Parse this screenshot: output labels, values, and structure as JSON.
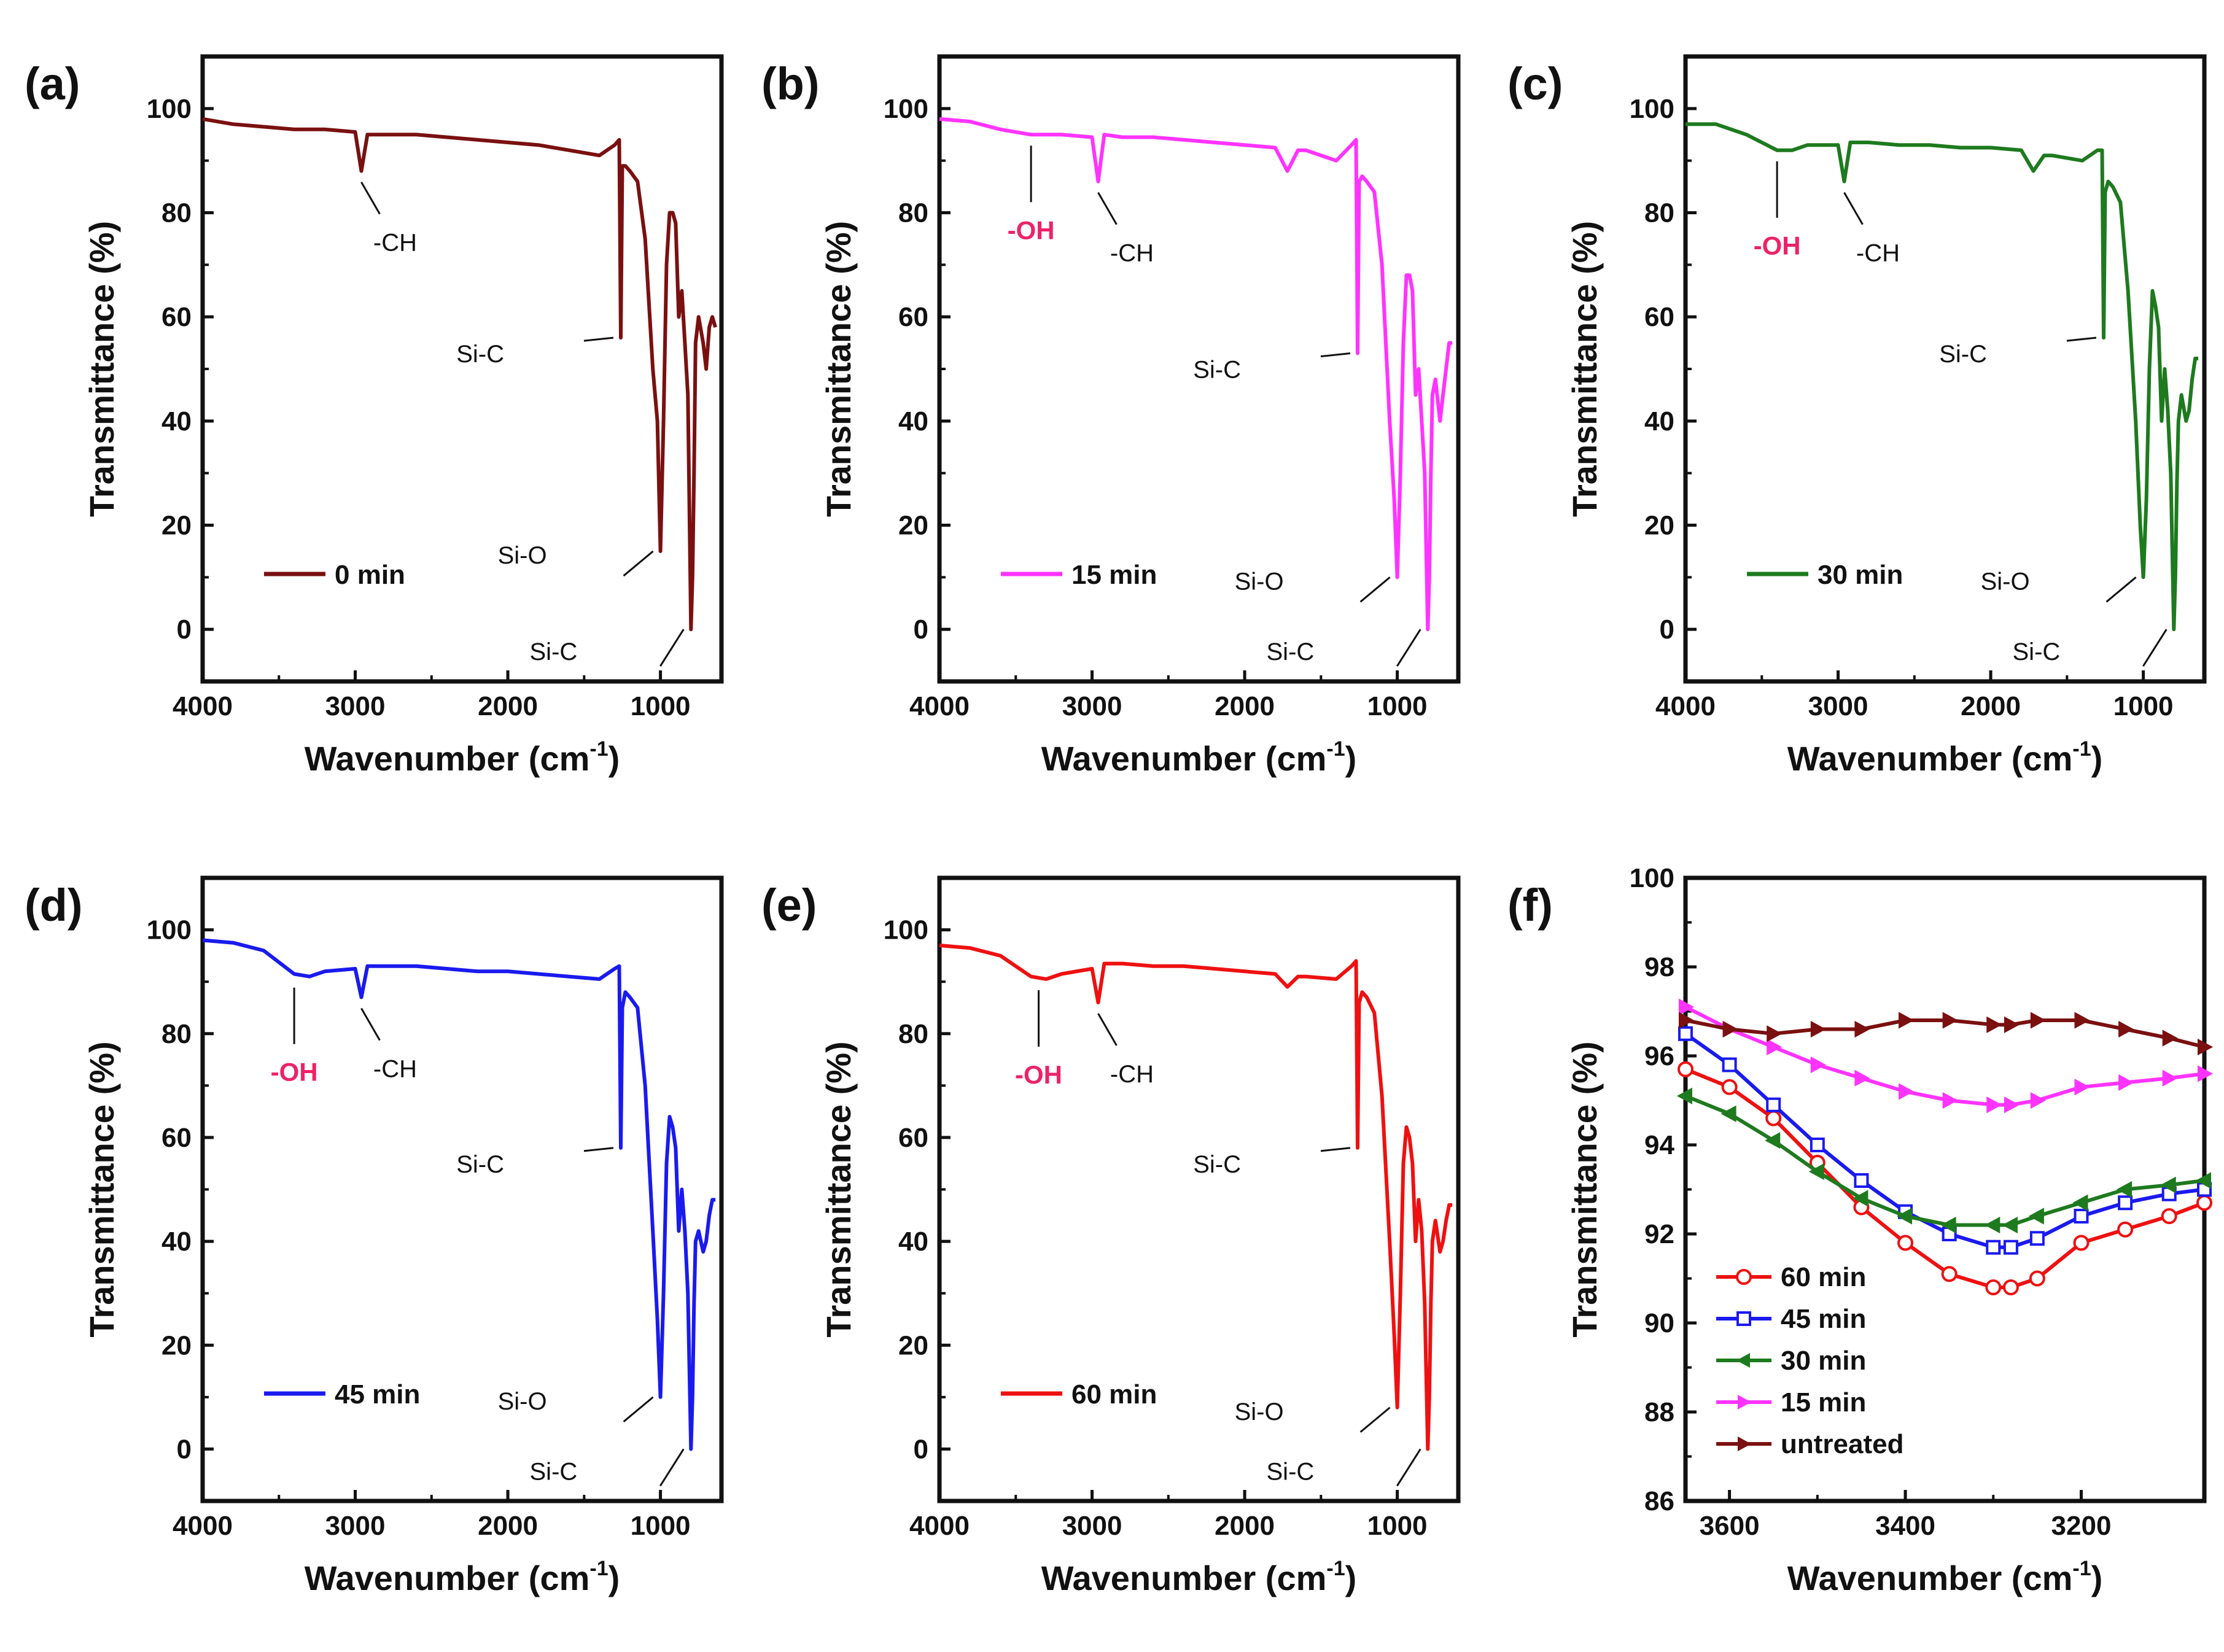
{
  "chart_data": [
    {
      "type": "line",
      "panel": "(a)",
      "title": "",
      "xlabel": "Wavenumber (cm",
      "xlabel_sup": "-1",
      "xlabel_end": ")",
      "ylabel": "Transmittance (%)",
      "xlim": [
        4000,
        600
      ],
      "ylim": [
        -10,
        110
      ],
      "xticks": [
        4000,
        3000,
        2000,
        1000
      ],
      "yticks": [
        0,
        20,
        40,
        60,
        80,
        100
      ],
      "color": "#7a1010",
      "legend": "0 min",
      "series": [
        {
          "name": "0 min",
          "x": [
            4000,
            3800,
            3600,
            3400,
            3200,
            3000,
            2960,
            2920,
            2800,
            2600,
            2400,
            2200,
            2000,
            1800,
            1600,
            1400,
            1300,
            1270,
            1260,
            1250,
            1230,
            1200,
            1150,
            1100,
            1050,
            1020,
            1000,
            980,
            960,
            940,
            920,
            900,
            880,
            860,
            840,
            820,
            800,
            790,
            780,
            770,
            750,
            720,
            700,
            680,
            660,
            640
          ],
          "y": [
            98,
            97,
            96.5,
            96,
            96,
            95.5,
            88,
            95,
            95,
            95,
            94.5,
            94,
            93.5,
            93,
            92,
            91,
            93,
            94,
            56,
            89,
            89,
            88,
            86,
            75,
            50,
            40,
            15,
            40,
            70,
            80,
            80,
            78,
            60,
            65,
            55,
            45,
            0,
            10,
            30,
            55,
            60,
            55,
            50,
            58,
            60,
            58
          ]
        }
      ],
      "annotations": [
        {
          "text": "-CH",
          "x": 2960,
          "y": 88
        },
        {
          "text": "Si-C",
          "x": 1260,
          "y": 56
        },
        {
          "text": "Si-O",
          "x": 1000,
          "y": 15
        },
        {
          "text": "Si-C",
          "x": 800,
          "y": 0
        }
      ]
    },
    {
      "type": "line",
      "panel": "(b)",
      "title": "",
      "xlabel": "Wavenumber (cm",
      "xlabel_sup": "-1",
      "xlabel_end": ")",
      "ylabel": "Transmittance (%)",
      "xlim": [
        4000,
        600
      ],
      "ylim": [
        -10,
        110
      ],
      "xticks": [
        4000,
        3000,
        2000,
        1000
      ],
      "yticks": [
        0,
        20,
        40,
        60,
        80,
        100
      ],
      "color": "#ff33ff",
      "legend": "15 min",
      "series": [
        {
          "name": "15 min",
          "x": [
            4000,
            3800,
            3600,
            3400,
            3300,
            3200,
            3000,
            2960,
            2920,
            2800,
            2600,
            2400,
            2200,
            2000,
            1800,
            1720,
            1650,
            1600,
            1400,
            1300,
            1270,
            1260,
            1250,
            1230,
            1200,
            1150,
            1100,
            1050,
            1020,
            1000,
            980,
            960,
            940,
            920,
            900,
            880,
            860,
            840,
            820,
            800,
            790,
            780,
            770,
            750,
            720,
            700,
            680,
            660,
            640
          ],
          "y": [
            98,
            97.5,
            96,
            95,
            95,
            95,
            94.5,
            86,
            95,
            94.5,
            94.5,
            94,
            93.5,
            93,
            92.5,
            88,
            92,
            92,
            90,
            93,
            94,
            53,
            86,
            87,
            86,
            84,
            70,
            40,
            25,
            10,
            30,
            55,
            68,
            68,
            65,
            45,
            50,
            40,
            30,
            0,
            10,
            30,
            45,
            48,
            40,
            45,
            50,
            55,
            55
          ]
        }
      ],
      "annotations": [
        {
          "text": "-OH",
          "x": 3400,
          "y": 95,
          "highlight": true
        },
        {
          "text": "-CH",
          "x": 2960,
          "y": 86
        },
        {
          "text": "Si-C",
          "x": 1260,
          "y": 53
        },
        {
          "text": "Si-O",
          "x": 1000,
          "y": 10
        },
        {
          "text": "Si-C",
          "x": 800,
          "y": 0
        }
      ]
    },
    {
      "type": "line",
      "panel": "(c)",
      "title": "",
      "xlabel": "Wavenumber (cm",
      "xlabel_sup": "-1",
      "xlabel_end": ")",
      "ylabel": "Transmittance (%)",
      "xlim": [
        4000,
        600
      ],
      "ylim": [
        -10,
        110
      ],
      "xticks": [
        4000,
        3000,
        2000,
        1000
      ],
      "yticks": [
        0,
        20,
        40,
        60,
        80,
        100
      ],
      "color": "#1e7a1e",
      "legend": "30 min",
      "series": [
        {
          "name": "30 min",
          "x": [
            4000,
            3800,
            3600,
            3400,
            3300,
            3200,
            3000,
            2960,
            2920,
            2800,
            2600,
            2400,
            2200,
            2000,
            1800,
            1720,
            1650,
            1600,
            1400,
            1300,
            1270,
            1260,
            1250,
            1230,
            1200,
            1150,
            1100,
            1050,
            1020,
            1000,
            980,
            960,
            940,
            920,
            900,
            880,
            860,
            840,
            820,
            800,
            790,
            780,
            770,
            750,
            720,
            700,
            680,
            660,
            640
          ],
          "y": [
            97,
            97,
            95,
            92,
            92,
            93,
            93,
            86,
            93.5,
            93.5,
            93,
            93,
            92.5,
            92.5,
            92,
            88,
            91,
            91,
            90,
            92,
            92,
            56,
            84,
            86,
            85,
            82,
            65,
            40,
            20,
            10,
            25,
            50,
            65,
            62,
            58,
            40,
            50,
            42,
            30,
            0,
            10,
            28,
            40,
            45,
            40,
            42,
            48,
            52,
            52
          ]
        }
      ],
      "annotations": [
        {
          "text": "-OH",
          "x": 3400,
          "y": 92,
          "highlight": true
        },
        {
          "text": "-CH",
          "x": 2960,
          "y": 86
        },
        {
          "text": "Si-C",
          "x": 1260,
          "y": 56
        },
        {
          "text": "Si-O",
          "x": 1000,
          "y": 10
        },
        {
          "text": "Si-C",
          "x": 800,
          "y": 0
        }
      ]
    },
    {
      "type": "line",
      "panel": "(d)",
      "title": "",
      "xlabel": "Wavenumber (cm",
      "xlabel_sup": "-1",
      "xlabel_end": ")",
      "ylabel": "Transmittance (%)",
      "xlim": [
        4000,
        600
      ],
      "ylim": [
        -10,
        110
      ],
      "xticks": [
        4000,
        3000,
        2000,
        1000
      ],
      "yticks": [
        0,
        20,
        40,
        60,
        80,
        100
      ],
      "color": "#1a1aee",
      "legend": "45 min",
      "series": [
        {
          "name": "45 min",
          "x": [
            4000,
            3800,
            3600,
            3400,
            3300,
            3200,
            3000,
            2960,
            2920,
            2800,
            2600,
            2400,
            2200,
            2000,
            1800,
            1600,
            1400,
            1300,
            1270,
            1260,
            1250,
            1230,
            1200,
            1150,
            1100,
            1050,
            1020,
            1000,
            980,
            960,
            940,
            920,
            900,
            880,
            860,
            840,
            820,
            800,
            790,
            780,
            770,
            750,
            720,
            700,
            680,
            660,
            640
          ],
          "y": [
            98,
            97.5,
            96,
            91.5,
            91,
            92,
            92.5,
            87,
            93,
            93,
            93,
            92.5,
            92,
            92,
            91.5,
            91,
            90.5,
            92.5,
            93,
            58,
            85,
            88,
            87,
            85,
            70,
            42,
            25,
            10,
            30,
            55,
            64,
            62,
            58,
            42,
            50,
            42,
            30,
            0,
            10,
            28,
            40,
            42,
            38,
            40,
            45,
            48,
            48
          ]
        }
      ],
      "annotations": [
        {
          "text": "-OH",
          "x": 3400,
          "y": 91,
          "highlight": true
        },
        {
          "text": "-CH",
          "x": 2960,
          "y": 87
        },
        {
          "text": "Si-C",
          "x": 1260,
          "y": 58
        },
        {
          "text": "Si-O",
          "x": 1000,
          "y": 10
        },
        {
          "text": "Si-C",
          "x": 800,
          "y": 0
        }
      ]
    },
    {
      "type": "line",
      "panel": "(e)",
      "title": "",
      "xlabel": "Wavenumber (cm",
      "xlabel_sup": "-1",
      "xlabel_end": ")",
      "ylabel": "Transmittance (%)",
      "xlim": [
        4000,
        600
      ],
      "ylim": [
        -10,
        110
      ],
      "xticks": [
        4000,
        3000,
        2000,
        1000
      ],
      "yticks": [
        0,
        20,
        40,
        60,
        80,
        100
      ],
      "color": "#ee1111",
      "legend": "60 min",
      "series": [
        {
          "name": "60 min",
          "x": [
            4000,
            3800,
            3600,
            3400,
            3300,
            3200,
            3000,
            2960,
            2920,
            2800,
            2600,
            2400,
            2200,
            2000,
            1800,
            1720,
            1650,
            1600,
            1400,
            1300,
            1270,
            1260,
            1250,
            1230,
            1200,
            1150,
            1100,
            1050,
            1020,
            1000,
            980,
            960,
            940,
            920,
            900,
            880,
            860,
            840,
            820,
            800,
            790,
            780,
            770,
            750,
            720,
            700,
            680,
            660,
            640
          ],
          "y": [
            97,
            96.5,
            95,
            91,
            90.5,
            91.5,
            92.5,
            86,
            93.5,
            93.5,
            93,
            93,
            92.5,
            92,
            91.5,
            89,
            91,
            91,
            90.5,
            93,
            94,
            58,
            86,
            88,
            87,
            84,
            68,
            40,
            22,
            8,
            30,
            55,
            62,
            60,
            55,
            40,
            48,
            42,
            28,
            0,
            10,
            28,
            40,
            44,
            38,
            40,
            44,
            47,
            47
          ]
        }
      ],
      "annotations": [
        {
          "text": "-OH",
          "x": 3350,
          "y": 90.5,
          "highlight": true
        },
        {
          "text": "-CH",
          "x": 2960,
          "y": 86
        },
        {
          "text": "Si-C",
          "x": 1260,
          "y": 58
        },
        {
          "text": "Si-O",
          "x": 1000,
          "y": 8
        },
        {
          "text": "Si-C",
          "x": 800,
          "y": 0
        }
      ]
    },
    {
      "type": "line",
      "panel": "(f)",
      "title": "",
      "xlabel": "Wavenumber (cm",
      "xlabel_sup": "-1",
      "xlabel_end": ")",
      "ylabel": "Transmittance (%)",
      "xlim": [
        3650,
        3060
      ],
      "ylim": [
        86,
        100
      ],
      "xticks": [
        3600,
        3400,
        3200
      ],
      "yticks": [
        86,
        88,
        90,
        92,
        94,
        96,
        98,
        100
      ],
      "legend_position": "bottom-left",
      "series": [
        {
          "name": "60 min",
          "color": "#ee1111",
          "marker": "circle",
          "x": [
            3650,
            3600,
            3550,
            3500,
            3450,
            3400,
            3350,
            3300,
            3280,
            3250,
            3200,
            3150,
            3100,
            3060
          ],
          "y": [
            95.7,
            95.3,
            94.6,
            93.6,
            92.6,
            91.8,
            91.1,
            90.8,
            90.8,
            91.0,
            91.8,
            92.1,
            92.4,
            92.7
          ]
        },
        {
          "name": "45 min",
          "color": "#1a1aee",
          "marker": "square",
          "x": [
            3650,
            3600,
            3550,
            3500,
            3450,
            3400,
            3350,
            3300,
            3280,
            3250,
            3200,
            3150,
            3100,
            3060
          ],
          "y": [
            96.5,
            95.8,
            94.9,
            94.0,
            93.2,
            92.5,
            92.0,
            91.7,
            91.7,
            91.9,
            92.4,
            92.7,
            92.9,
            93.0
          ]
        },
        {
          "name": "30 min",
          "color": "#1e7a1e",
          "marker": "triangle-left",
          "x": [
            3650,
            3600,
            3550,
            3500,
            3450,
            3400,
            3350,
            3300,
            3280,
            3250,
            3200,
            3150,
            3100,
            3060
          ],
          "y": [
            95.1,
            94.7,
            94.1,
            93.4,
            92.8,
            92.4,
            92.2,
            92.2,
            92.2,
            92.4,
            92.7,
            93.0,
            93.1,
            93.2
          ]
        },
        {
          "name": "15 min",
          "color": "#ff33ff",
          "marker": "triangle-right",
          "x": [
            3650,
            3600,
            3550,
            3500,
            3450,
            3400,
            3350,
            3300,
            3280,
            3250,
            3200,
            3150,
            3100,
            3060
          ],
          "y": [
            97.1,
            96.6,
            96.2,
            95.8,
            95.5,
            95.2,
            95.0,
            94.9,
            94.9,
            95.0,
            95.3,
            95.4,
            95.5,
            95.6
          ]
        },
        {
          "name": "untreated",
          "color": "#7a1010",
          "marker": "triangle-right",
          "x": [
            3650,
            3600,
            3550,
            3500,
            3450,
            3400,
            3350,
            3300,
            3280,
            3250,
            3200,
            3150,
            3100,
            3060
          ],
          "y": [
            96.8,
            96.6,
            96.5,
            96.6,
            96.6,
            96.8,
            96.8,
            96.7,
            96.7,
            96.8,
            96.8,
            96.6,
            96.4,
            96.2
          ]
        }
      ]
    }
  ]
}
